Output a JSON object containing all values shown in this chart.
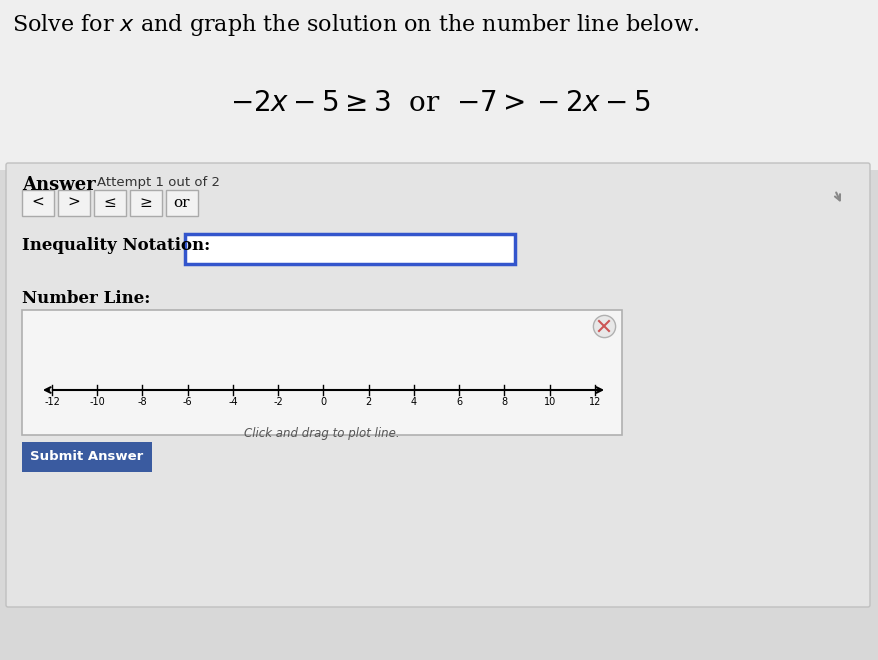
{
  "bg_top_color": "#e8e8e8",
  "bg_bottom_color": "#d0d0d0",
  "title_text": "Solve for $x$ and graph the solution on the number line below.",
  "title_fontsize": 16,
  "title_color": "#000000",
  "equation_text1": "$-2x-5 \\geq 3$",
  "equation_text2": "or",
  "equation_text3": "$-7>-2x-5$",
  "equation_fontsize": 20,
  "equation_color": "#000000",
  "answer_label": "Answer",
  "attempt_label": "Attempt 1 out of 2",
  "buttons": [
    "<",
    ">",
    "≤",
    "≥",
    "or"
  ],
  "inequality_label": "Inequality Notation:",
  "number_line_label": "Number Line:",
  "number_line_ticks": [
    -12,
    -10,
    -8,
    -6,
    -4,
    -2,
    0,
    2,
    4,
    6,
    8,
    10,
    12
  ],
  "number_line_hint": "Click and drag to plot line.",
  "submit_label": "Submit Answer",
  "submit_bg": "#3a5ba0",
  "submit_text_color": "#ffffff",
  "outer_panel_bg": "#c8c8c8",
  "panel_bg": "#e0e0e0",
  "inner_bg": "#f0f0f0",
  "button_bg": "#f0f0f0",
  "button_border": "#999999",
  "input_box_border": "#3355cc",
  "number_line_box_bg": "#f8f8f8",
  "number_line_box_border": "#aaaaaa"
}
